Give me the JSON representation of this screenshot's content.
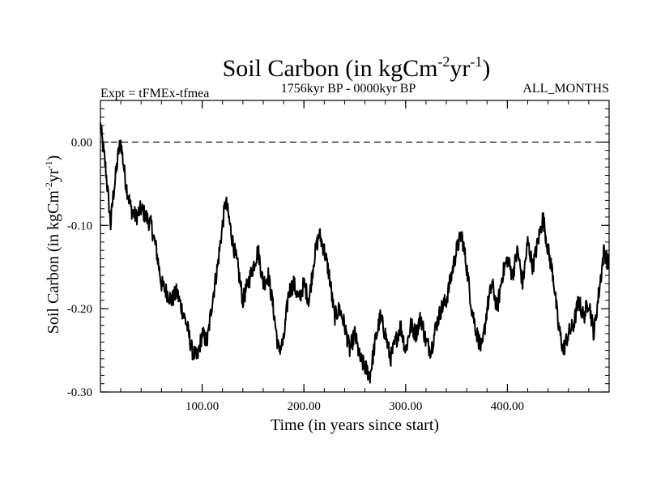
{
  "chart_data": {
    "type": "line",
    "title": "Soil Carbon (in kgCm",
    "title_sup1": "-2",
    "title_mid": "yr",
    "title_sup2": "-1",
    "title_end": ")",
    "subtitle_left": "Expt = tFMEx-tfmea",
    "subtitle_center": "1756kyr BP - 0000kyr BP",
    "subtitle_right": "ALL_MONTHS",
    "xlabel": "Time (in years since start)",
    "ylabel": "Soil Carbon (in kgCm",
    "ylabel_sup1": "-2",
    "ylabel_mid": "yr",
    "ylabel_sup2": "-1",
    "ylabel_end": ")",
    "xlim": [
      0,
      500
    ],
    "ylim": [
      -0.3,
      0.05
    ],
    "xticks": [
      100,
      200,
      300,
      400
    ],
    "xtick_labels": [
      "100.00",
      "200.00",
      "300.00",
      "400.00"
    ],
    "yticks": [
      0.0,
      -0.1,
      -0.2,
      -0.3
    ],
    "ytick_labels": [
      "0.00",
      "-0.10",
      "-0.20",
      "-0.30"
    ],
    "reference_line": {
      "y": 0.0,
      "style": "dashed"
    },
    "line_color": "#000000",
    "series": [
      {
        "name": "Soil Carbon",
        "x": [
          0,
          2,
          5,
          8,
          10,
          12,
          15,
          18,
          20,
          25,
          30,
          35,
          40,
          45,
          50,
          55,
          60,
          65,
          70,
          75,
          80,
          85,
          90,
          95,
          100,
          105,
          110,
          115,
          120,
          123,
          126,
          130,
          135,
          140,
          145,
          150,
          155,
          160,
          165,
          170,
          175,
          180,
          185,
          190,
          195,
          200,
          205,
          210,
          215,
          220,
          225,
          230,
          235,
          240,
          245,
          250,
          255,
          260,
          265,
          270,
          275,
          280,
          285,
          290,
          295,
          300,
          305,
          310,
          315,
          320,
          325,
          330,
          335,
          340,
          345,
          350,
          355,
          360,
          365,
          370,
          375,
          380,
          385,
          390,
          395,
          400,
          405,
          410,
          415,
          420,
          425,
          430,
          435,
          440,
          445,
          450,
          455,
          460,
          465,
          470,
          475,
          480,
          485,
          490,
          495,
          500
        ],
        "values": [
          0.02,
          0.0,
          -0.03,
          -0.07,
          -0.1,
          -0.07,
          -0.04,
          -0.01,
          0.0,
          -0.05,
          -0.08,
          -0.09,
          -0.08,
          -0.09,
          -0.1,
          -0.13,
          -0.17,
          -0.18,
          -0.19,
          -0.18,
          -0.2,
          -0.22,
          -0.25,
          -0.26,
          -0.23,
          -0.24,
          -0.19,
          -0.15,
          -0.1,
          -0.07,
          -0.09,
          -0.12,
          -0.15,
          -0.19,
          -0.17,
          -0.15,
          -0.13,
          -0.17,
          -0.16,
          -0.2,
          -0.25,
          -0.24,
          -0.18,
          -0.17,
          -0.19,
          -0.17,
          -0.19,
          -0.14,
          -0.11,
          -0.13,
          -0.16,
          -0.21,
          -0.2,
          -0.22,
          -0.25,
          -0.23,
          -0.26,
          -0.27,
          -0.28,
          -0.24,
          -0.21,
          -0.23,
          -0.26,
          -0.24,
          -0.22,
          -0.25,
          -0.22,
          -0.23,
          -0.21,
          -0.24,
          -0.25,
          -0.22,
          -0.2,
          -0.19,
          -0.16,
          -0.13,
          -0.11,
          -0.15,
          -0.2,
          -0.23,
          -0.25,
          -0.2,
          -0.17,
          -0.2,
          -0.16,
          -0.14,
          -0.16,
          -0.13,
          -0.17,
          -0.12,
          -0.15,
          -0.12,
          -0.09,
          -0.13,
          -0.16,
          -0.22,
          -0.25,
          -0.23,
          -0.22,
          -0.19,
          -0.21,
          -0.19,
          -0.23,
          -0.18,
          -0.13,
          -0.15
        ]
      }
    ]
  }
}
